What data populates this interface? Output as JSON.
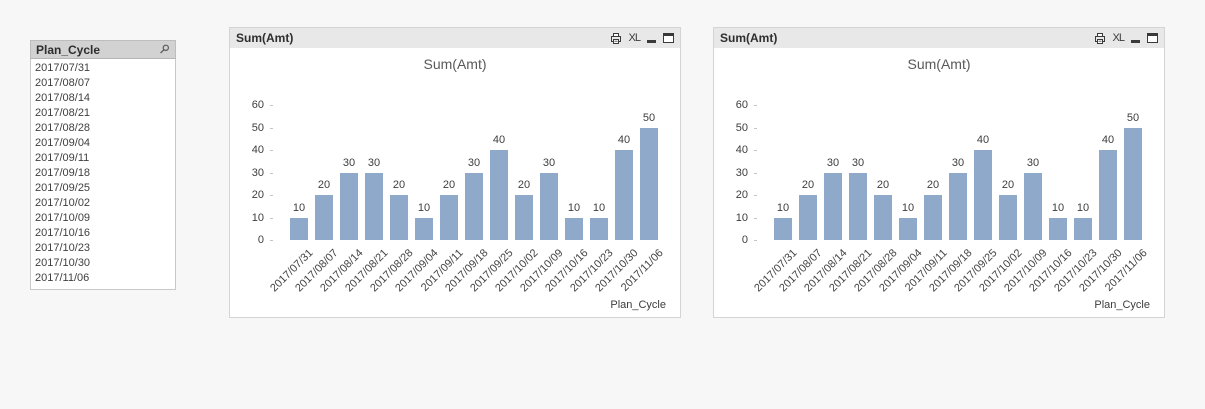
{
  "page": {
    "background_color": "#f7f7f7",
    "accent_bar_color": "#8ea9c9"
  },
  "listbox": {
    "title": "Plan_Cycle",
    "search_icon": "magnifier",
    "items": [
      "2017/07/31",
      "2017/08/07",
      "2017/08/14",
      "2017/08/21",
      "2017/08/28",
      "2017/09/04",
      "2017/09/11",
      "2017/09/18",
      "2017/09/25",
      "2017/10/02",
      "2017/10/09",
      "2017/10/16",
      "2017/10/23",
      "2017/10/30",
      "2017/11/06"
    ]
  },
  "chart_windows": [
    {
      "caption": "Sum(Amt)",
      "excel_label": "XL",
      "icons": [
        "print-icon",
        "excel-export-icon",
        "minimize-icon",
        "maximize-icon"
      ]
    },
    {
      "caption": "Sum(Amt)",
      "excel_label": "XL",
      "icons": [
        "print-icon",
        "excel-export-icon",
        "minimize-icon",
        "maximize-icon"
      ]
    }
  ],
  "chart_data": [
    {
      "type": "bar",
      "title": "Sum(Amt)",
      "xlabel": "Plan_Cycle",
      "ylabel": "",
      "categories": [
        "2017/07/31",
        "2017/08/07",
        "2017/08/14",
        "2017/08/21",
        "2017/08/28",
        "2017/09/04",
        "2017/09/11",
        "2017/09/18",
        "2017/09/25",
        "2017/10/02",
        "2017/10/09",
        "2017/10/16",
        "2017/10/23",
        "2017/10/30",
        "2017/11/06"
      ],
      "values": [
        10,
        20,
        30,
        30,
        20,
        10,
        20,
        30,
        40,
        20,
        30,
        10,
        10,
        40,
        50
      ],
      "ylim": [
        0,
        60
      ],
      "yticks": [
        0,
        10,
        20,
        30,
        40,
        50,
        60
      ],
      "bar_color": "#8ea9c9",
      "value_labels_shown": true,
      "x_tick_rotation_deg": -45,
      "grid": "off",
      "legend": "none"
    },
    {
      "type": "bar",
      "title": "Sum(Amt)",
      "xlabel": "Plan_Cycle",
      "ylabel": "",
      "categories": [
        "2017/07/31",
        "2017/08/07",
        "2017/08/14",
        "2017/08/21",
        "2017/08/28",
        "2017/09/04",
        "2017/09/11",
        "2017/09/18",
        "2017/09/25",
        "2017/10/02",
        "2017/10/09",
        "2017/10/16",
        "2017/10/23",
        "2017/10/30",
        "2017/11/06"
      ],
      "values": [
        10,
        20,
        30,
        30,
        20,
        10,
        20,
        30,
        40,
        20,
        30,
        10,
        10,
        40,
        50
      ],
      "ylim": [
        0,
        60
      ],
      "yticks": [
        0,
        10,
        20,
        30,
        40,
        50,
        60
      ],
      "bar_color": "#8ea9c9",
      "value_labels_shown": true,
      "x_tick_rotation_deg": -45,
      "grid": "off",
      "legend": "none"
    }
  ]
}
